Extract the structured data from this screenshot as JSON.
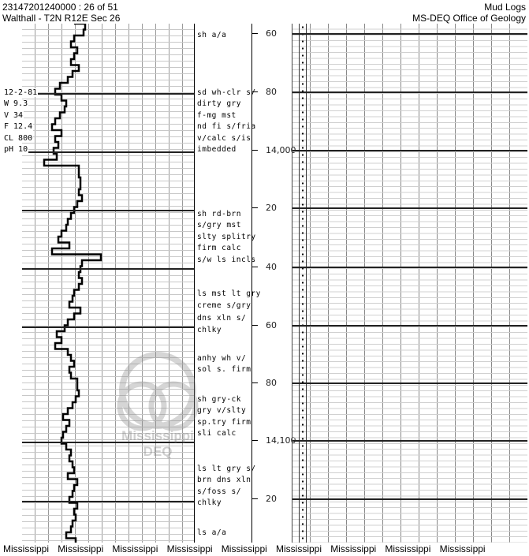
{
  "header": {
    "doc_id": "23147201240000 : 26 of 51",
    "location": "Walthall - T2N R12E Sec 26",
    "category": "Mud Logs",
    "agency": "MS-DEQ Office of Geology"
  },
  "depth_labels": [
    "60",
    "80",
    "14,000",
    "20",
    "40",
    "60",
    "80",
    "14,100",
    "20"
  ],
  "mud_properties": [
    "12-2-81",
    "W  9.3",
    "V  34",
    "F  12.4",
    "CL 800",
    "pH 10"
  ],
  "descriptions": [
    "sh a/a",
    "sd wh-clr s/",
    "dirty gry",
    "f-mg mst",
    "nd fi s/fria",
    "v/calc s/is",
    "imbedded",
    "sh rd-brn",
    "s/gry mst",
    "slty splitry",
    "firm calc",
    "s/w ls incls",
    "ls mst lt gry",
    "creme s/gry",
    "dns xln s/",
    "chlky",
    "anhy wh v/",
    "sol s. firm",
    "sh gry-ck",
    "gry v/slty",
    "sp.try firm",
    "sli calc",
    "ls lt gry s/",
    "brn dns xln",
    "s/foss s/",
    "chlky",
    "ls a/a"
  ],
  "watermark": {
    "line1": "Mississippi",
    "line2": "DEQ"
  },
  "footer": [
    "Mississippi",
    "Mississippi",
    "Mississippi",
    "Mississippi",
    "Mississippi",
    "Mississippi",
    "Mississippi",
    "Mississippi",
    "Mississippi"
  ]
}
